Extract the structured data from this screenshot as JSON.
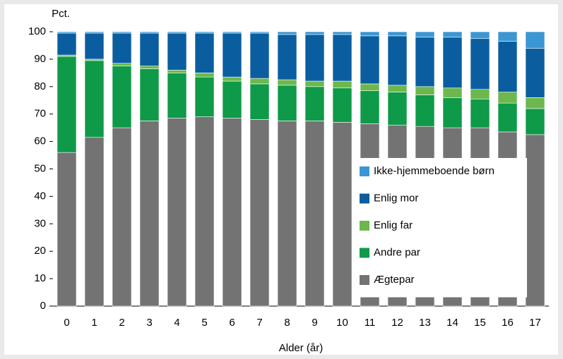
{
  "chart_data": {
    "type": "stacked_bar",
    "ylabel": "Pct.",
    "xlabel": "Alder (år)",
    "categories": [
      "0",
      "1",
      "2",
      "3",
      "4",
      "5",
      "6",
      "7",
      "8",
      "9",
      "10",
      "11",
      "12",
      "13",
      "14",
      "15",
      "16",
      "17"
    ],
    "series": [
      {
        "name": "Ægtepar",
        "color": "#737373",
        "values": [
          56,
          61.5,
          65,
          67.5,
          68.5,
          69,
          68.5,
          68,
          67.5,
          67.5,
          67,
          66.5,
          66,
          65.5,
          65,
          65,
          63.5,
          62.5
        ]
      },
      {
        "name": "Andre par",
        "color": "#0e9a48",
        "values": [
          35,
          28,
          22.5,
          19,
          16.5,
          14.5,
          13.5,
          13,
          13,
          12.5,
          12.5,
          12,
          12,
          11.5,
          11,
          10.5,
          10.5,
          9.5
        ]
      },
      {
        "name": "Enlig far",
        "color": "#6cb84d",
        "values": [
          0.5,
          0.5,
          1,
          1,
          1,
          1.5,
          1.5,
          2,
          2,
          2,
          2.5,
          2.5,
          2.5,
          3,
          3.5,
          3.5,
          4,
          4
        ]
      },
      {
        "name": "Enlig mor",
        "color": "#0a5e9f",
        "values": [
          8,
          9.5,
          11,
          12,
          13.5,
          14.5,
          16,
          16.5,
          16.5,
          17,
          17,
          17.5,
          18,
          18,
          18.5,
          18.5,
          18.5,
          18
        ]
      },
      {
        "name": "Ikke-hjemmeboende børn",
        "color": "#3b97d3",
        "values": [
          0.5,
          0.5,
          0.5,
          0.5,
          0.5,
          0.5,
          0.5,
          0.5,
          1,
          1,
          1,
          1.5,
          1.5,
          2,
          2,
          2.5,
          3.5,
          6
        ]
      }
    ],
    "ylim": [
      0,
      100
    ],
    "yticks": [
      0,
      10,
      20,
      30,
      40,
      50,
      60,
      70,
      80,
      90,
      100
    ],
    "legend": "right",
    "grid": false
  }
}
